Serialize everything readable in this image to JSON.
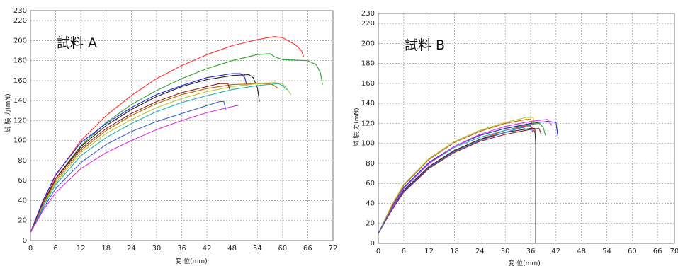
{
  "chart_data": [
    {
      "type": "line",
      "sample_label": "試料 A",
      "xlabel": "変 位(mm)",
      "ylabel": "試 験 力(mN)",
      "xlim": [
        0,
        72
      ],
      "ylim": [
        0,
        230
      ],
      "x_ticks": [
        "0",
        "6",
        "12",
        "18",
        "24",
        "30",
        "36",
        "42",
        "48",
        "54",
        "60",
        "66",
        "72"
      ],
      "y_ticks": [
        "0",
        "20",
        "40",
        "60",
        "80",
        "100",
        "120",
        "140",
        "160",
        "180",
        "200",
        "220",
        "230"
      ],
      "grid": true,
      "series": [
        {
          "color": "#ff2a2a",
          "x": [
            0,
            3,
            6,
            12,
            18,
            24,
            30,
            36,
            42,
            48,
            54,
            58,
            60,
            63,
            64.5,
            65
          ],
          "y": [
            8,
            40,
            65,
            100,
            125,
            145,
            162,
            175,
            186,
            195,
            201,
            204,
            203,
            196,
            190,
            184
          ]
        },
        {
          "color": "#2ea02e",
          "x": [
            0,
            3,
            6,
            12,
            18,
            24,
            30,
            36,
            42,
            48,
            54,
            57,
            58,
            60,
            66,
            68,
            69,
            69.5
          ],
          "y": [
            8,
            38,
            62,
            95,
            118,
            136,
            150,
            162,
            172,
            180,
            186,
            187,
            184,
            181,
            180,
            176,
            168,
            156
          ]
        },
        {
          "color": "#2222dd",
          "x": [
            0,
            3,
            6,
            12,
            18,
            24,
            30,
            36,
            42,
            48,
            50,
            51,
            51.5
          ],
          "y": [
            8,
            40,
            66,
            98,
            117,
            133,
            146,
            155,
            163,
            167,
            167,
            163,
            155
          ]
        },
        {
          "color": "#222222",
          "x": [
            0,
            3,
            6,
            12,
            18,
            24,
            30,
            36,
            42,
            48,
            52,
            53,
            54,
            54.5
          ],
          "y": [
            8,
            36,
            62,
            94,
            115,
            131,
            144,
            154,
            161,
            165,
            166,
            163,
            153,
            139
          ]
        },
        {
          "color": "#b36b00",
          "x": [
            0,
            3,
            6,
            12,
            18,
            24,
            30,
            36,
            42,
            48,
            54,
            57,
            58,
            59
          ],
          "y": [
            8,
            36,
            60,
            90,
            110,
            125,
            137,
            146,
            152,
            156,
            157,
            157,
            155,
            152
          ]
        },
        {
          "color": "#c0c030",
          "x": [
            0,
            3,
            6,
            12,
            18,
            24,
            30,
            36,
            42,
            48,
            54,
            58,
            60,
            61,
            62
          ],
          "y": [
            8,
            35,
            58,
            88,
            107,
            121,
            133,
            142,
            149,
            154,
            157,
            158,
            157,
            152,
            146
          ]
        },
        {
          "color": "#8b1a1a",
          "x": [
            0,
            3,
            6,
            12,
            18,
            24,
            30,
            36,
            42,
            45,
            47,
            47.5
          ],
          "y": [
            8,
            38,
            62,
            92,
            112,
            127,
            139,
            148,
            154,
            157,
            157,
            150
          ]
        },
        {
          "color": "#20b0b0",
          "x": [
            0,
            3,
            6,
            12,
            18,
            24,
            30,
            36,
            42,
            48,
            54,
            59,
            60,
            61
          ],
          "y": [
            8,
            34,
            56,
            85,
            103,
            117,
            129,
            138,
            145,
            151,
            155,
            157,
            155,
            151
          ]
        },
        {
          "color": "#3a5fcd",
          "x": [
            0,
            3,
            6,
            12,
            18,
            24,
            30,
            36,
            42,
            45,
            46,
            46.5
          ],
          "y": [
            8,
            32,
            52,
            78,
            96,
            109,
            119,
            127,
            135,
            139,
            139,
            131
          ]
        },
        {
          "color": "#e030e0",
          "x": [
            0,
            3,
            6,
            12,
            18,
            24,
            30,
            36,
            42,
            48,
            49,
            49.5
          ],
          "y": [
            8,
            30,
            48,
            72,
            88,
            100,
            111,
            120,
            128,
            134,
            135,
            135
          ]
        }
      ]
    },
    {
      "type": "line",
      "sample_label": "試料 B",
      "xlabel": "変 位(mm)",
      "ylabel": "試 験 力(mN)",
      "xlim": [
        0,
        70
      ],
      "ylim": [
        0,
        230
      ],
      "x_ticks": [
        "0",
        "6",
        "12",
        "18",
        "24",
        "30",
        "36",
        "42",
        "48",
        "54",
        "60",
        "66",
        "70"
      ],
      "y_ticks": [
        "0",
        "20",
        "40",
        "60",
        "80",
        "100",
        "120",
        "140",
        "160",
        "180",
        "200",
        "220",
        "230"
      ],
      "grid": true,
      "series": [
        {
          "color": "#ff2a2a",
          "x": [
            0,
            3,
            6,
            12,
            18,
            24,
            30,
            34,
            36,
            37
          ],
          "y": [
            10,
            32,
            52,
            76,
            93,
            104,
            113,
            117,
            118,
            111
          ]
        },
        {
          "color": "#2ea02e",
          "x": [
            0,
            3,
            6,
            12,
            18,
            24,
            30,
            36,
            38,
            39,
            39.5
          ],
          "y": [
            10,
            34,
            55,
            80,
            97,
            108,
            115,
            119,
            120,
            116,
            108
          ]
        },
        {
          "color": "#2222dd",
          "x": [
            0,
            3,
            6,
            12,
            18,
            24,
            30,
            36,
            40,
            42,
            42.5
          ],
          "y": [
            10,
            35,
            56,
            81,
            97,
            108,
            115,
            120,
            122,
            121,
            105
          ]
        },
        {
          "color": "#222222",
          "x": [
            0,
            3,
            6,
            12,
            18,
            24,
            30,
            36,
            37,
            37.2,
            37.2
          ],
          "y": [
            10,
            33,
            53,
            77,
            93,
            104,
            111,
            115,
            115,
            100,
            0
          ]
        },
        {
          "color": "#b36b00",
          "x": [
            0,
            3,
            6,
            12,
            18,
            24,
            30,
            35,
            36,
            36.5
          ],
          "y": [
            10,
            36,
            58,
            84,
            101,
            112,
            120,
            124,
            124,
            118
          ]
        },
        {
          "color": "#c0c030",
          "x": [
            0,
            3,
            6,
            12,
            18,
            24,
            30,
            35,
            36.5,
            37
          ],
          "y": [
            10,
            37,
            59,
            85,
            102,
            113,
            121,
            126,
            126,
            120
          ]
        },
        {
          "color": "#20b0b0",
          "x": [
            0,
            3,
            6,
            12,
            18,
            24,
            30,
            34,
            35
          ],
          "y": [
            10,
            34,
            55,
            80,
            96,
            106,
            113,
            116,
            114
          ]
        },
        {
          "color": "#e030e0",
          "x": [
            0,
            3,
            6,
            12,
            18,
            24,
            30,
            36,
            40,
            41
          ],
          "y": [
            10,
            34,
            55,
            80,
            97,
            109,
            117,
            122,
            124,
            118
          ]
        },
        {
          "color": "#8b1a1a",
          "x": [
            0,
            3,
            6,
            12,
            18,
            24,
            30,
            36,
            38,
            38.5
          ],
          "y": [
            10,
            32,
            51,
            75,
            91,
            102,
            109,
            114,
            115,
            109
          ]
        },
        {
          "color": "#3a5fcd",
          "x": [
            0,
            3,
            6,
            12,
            18,
            24,
            30,
            34,
            36,
            36.5
          ],
          "y": [
            10,
            33,
            52,
            76,
            92,
            103,
            111,
            116,
            117,
            111
          ]
        }
      ]
    }
  ]
}
